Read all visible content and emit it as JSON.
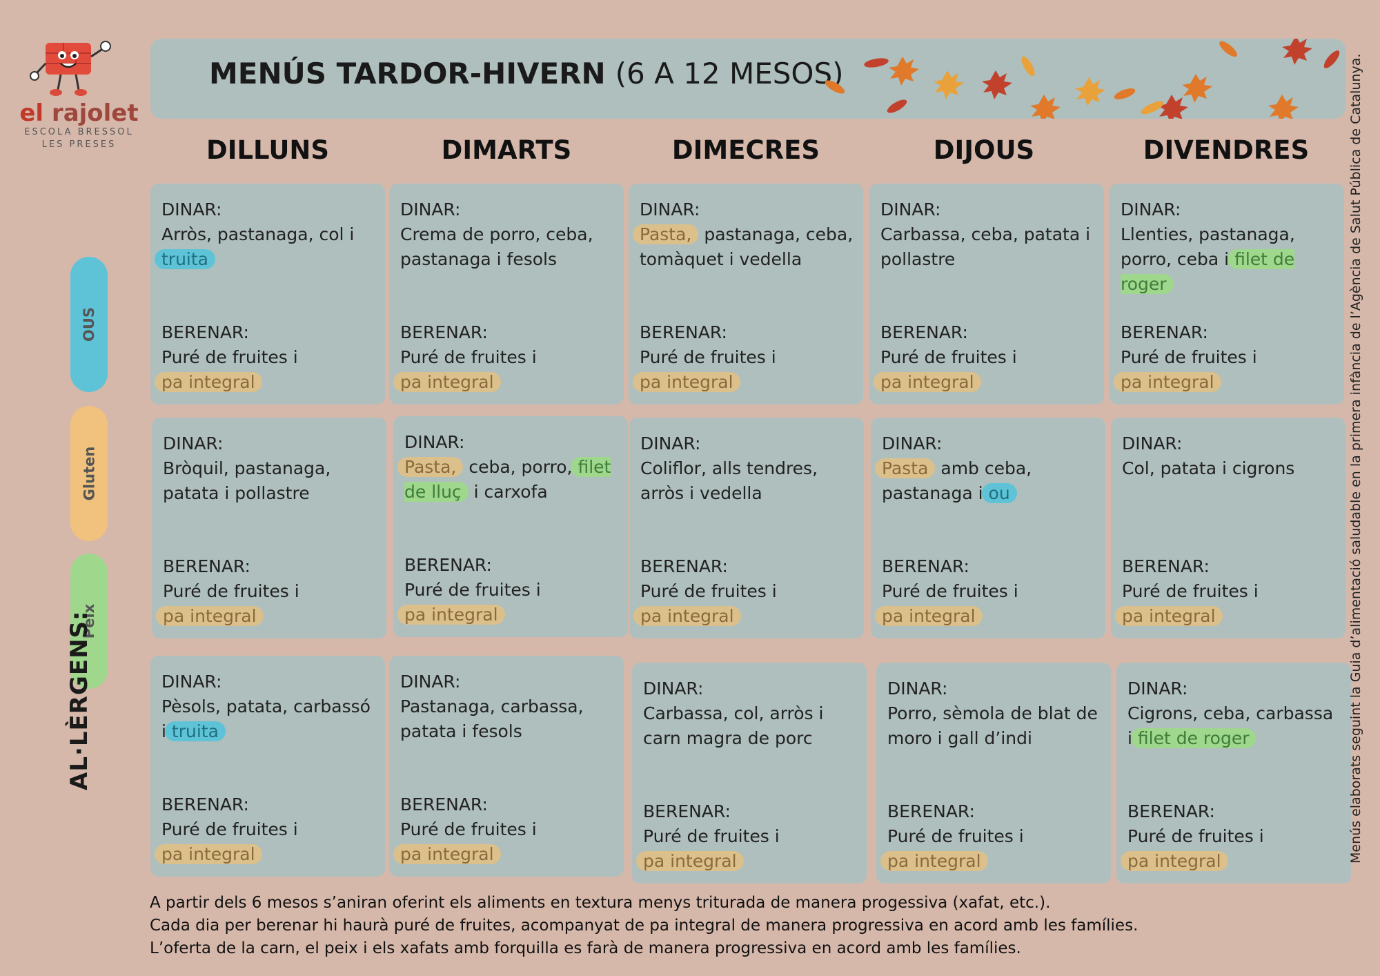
{
  "logo": {
    "name_part1": "el ",
    "name_part2": "rajolet",
    "subtitle1": "ESCOLA BRESSOL",
    "subtitle2": "LES PRESES"
  },
  "header": {
    "title_main": "MENÚS TARDOR-HIVERN",
    "title_sub": "(6 A 12 MESOS)"
  },
  "days": [
    "DILLUNS",
    "DIMARTS",
    "DIMECRES",
    "DIJOUS",
    "DIVENDRES"
  ],
  "labels": {
    "dinar": "DINAR:",
    "berenar": "BERENAR:"
  },
  "berenar": {
    "text": "Puré de fruites i",
    "highlight": "pa integral"
  },
  "rows": [
    [
      {
        "dinar": [
          {
            "t": "Arròs, pastanaga, col i "
          },
          {
            "t": "truita",
            "hl": "ous"
          }
        ]
      },
      {
        "dinar": [
          {
            "t": "Crema de porro, ceba, pastanaga i fesols"
          }
        ]
      },
      {
        "dinar": [
          {
            "t": "Pasta,",
            "hl": "gluten"
          },
          {
            "t": " pastanaga, ceba, tomàquet i vedella"
          }
        ]
      },
      {
        "dinar": [
          {
            "t": "Carbassa, ceba, patata i pollastre"
          }
        ]
      },
      {
        "dinar": [
          {
            "t": "Llenties, pastanaga, porro, ceba i "
          },
          {
            "t": "filet de roger",
            "hl": "peix"
          }
        ]
      }
    ],
    [
      {
        "dinar": [
          {
            "t": "Bròquil, pastanaga, patata i pollastre"
          }
        ]
      },
      {
        "dinar": [
          {
            "t": "Pasta,",
            "hl": "gluten"
          },
          {
            "t": " ceba, porro, "
          },
          {
            "t": "filet de lluç",
            "hl": "peix"
          },
          {
            "t": " i carxofa"
          }
        ]
      },
      {
        "dinar": [
          {
            "t": "Coliflor, alls tendres, arròs i vedella"
          }
        ]
      },
      {
        "dinar": [
          {
            "t": "Pasta",
            "hl": "gluten"
          },
          {
            "t": " amb ceba, pastanaga i "
          },
          {
            "t": "ou",
            "hl": "ous"
          }
        ]
      },
      {
        "dinar": [
          {
            "t": "Col, patata i cigrons"
          }
        ]
      }
    ],
    [
      {
        "dinar": [
          {
            "t": "Pèsols, patata, carbassó i "
          },
          {
            "t": "truita",
            "hl": "ous"
          }
        ]
      },
      {
        "dinar": [
          {
            "t": "Pastanaga, carbassa, patata i fesols"
          }
        ]
      },
      {
        "dinar": [
          {
            "t": "Carbassa, col, arròs i carn magra de porc"
          }
        ]
      },
      {
        "dinar": [
          {
            "t": "Porro, sèmola de blat de moro i gall d’indi"
          }
        ]
      },
      {
        "dinar": [
          {
            "t": "Cigrons, ceba, carbassa i "
          },
          {
            "t": "filet de roger",
            "hl": "peix"
          }
        ]
      }
    ]
  ],
  "allergens": {
    "label": "AL·LÈRGENS:",
    "items": [
      {
        "name": "OUS",
        "color": "#5ec3d6"
      },
      {
        "name": "Gluten",
        "color": "#f0c27e"
      },
      {
        "name": "Peix",
        "color": "#9fd78d"
      }
    ]
  },
  "side_note": "Menús elaborats seguint la Guia d’alimentació saludable en la primera infància de l’Agència de Salut Pública de Catalunya.",
  "footer": [
    "A partir dels 6 mesos s’aniran oferint els aliments en textura menys triturada de manera progessiva (xafat, etc.).",
    "Cada dia per berenar hi haurà puré de fruites, acompanyat de pa integral de manera progressiva en acord amb les famílies.",
    "L’oferta de la carn, el peix i els xafats amb forquilla es farà de manera  progressiva en acord amb les famílies."
  ],
  "colors": {
    "background": "#d6b8ab",
    "panel": "#aebfbd",
    "gluten": "#dcc08c",
    "ous": "#5ec3d6",
    "peix": "#9fd78d"
  }
}
